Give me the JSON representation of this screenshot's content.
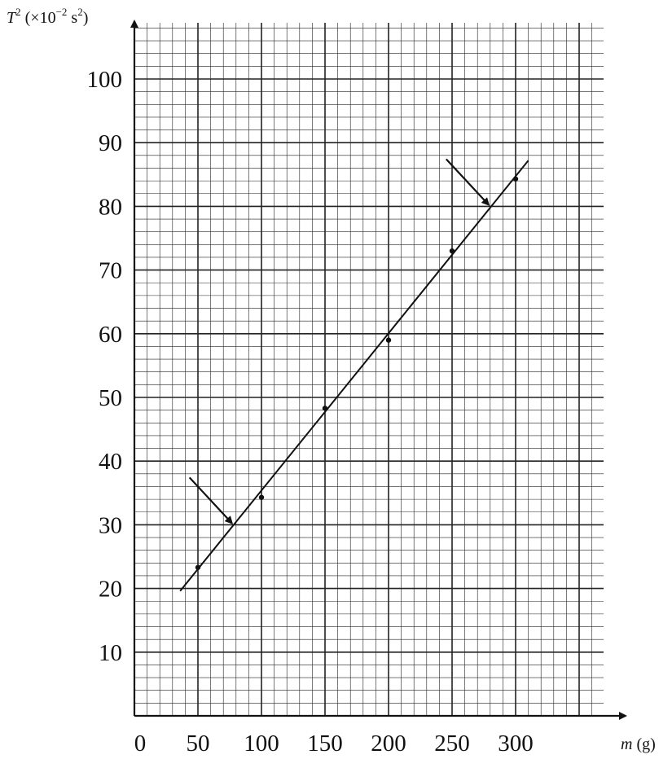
{
  "chart_data": {
    "type": "scatter",
    "title": "",
    "ylabel": {
      "symbol": "T",
      "exp": "2",
      "unit_open": " (×10",
      "unit_exp": "−2",
      "unit_mid": " s",
      "unit_exp2": "2",
      "unit_close": ")"
    },
    "xlabel": {
      "symbol": "m",
      "unit": " (g)"
    },
    "x_ticks": [
      "0",
      "50",
      "100",
      "150",
      "200",
      "250",
      "300"
    ],
    "y_ticks": [
      "10",
      "20",
      "30",
      "40",
      "50",
      "60",
      "70",
      "80",
      "90",
      "100"
    ],
    "xlim": [
      0,
      370
    ],
    "ylim": [
      0,
      108
    ],
    "grid": true,
    "points": [
      {
        "x": 50,
        "y": 23.3
      },
      {
        "x": 100,
        "y": 34.3
      },
      {
        "x": 150,
        "y": 48.3
      },
      {
        "x": 200,
        "y": 59.0
      },
      {
        "x": 250,
        "y": 73.0
      },
      {
        "x": 300,
        "y": 84.3
      }
    ],
    "best_fit_line": [
      {
        "x": 36,
        "y": 19.6
      },
      {
        "x": 310,
        "y": 87.2
      }
    ],
    "annotations": [
      {
        "type": "arrow",
        "points_to": {
          "x": 78,
          "y": 30
        }
      },
      {
        "type": "arrow",
        "points_to": {
          "x": 280,
          "y": 80
        }
      }
    ]
  }
}
